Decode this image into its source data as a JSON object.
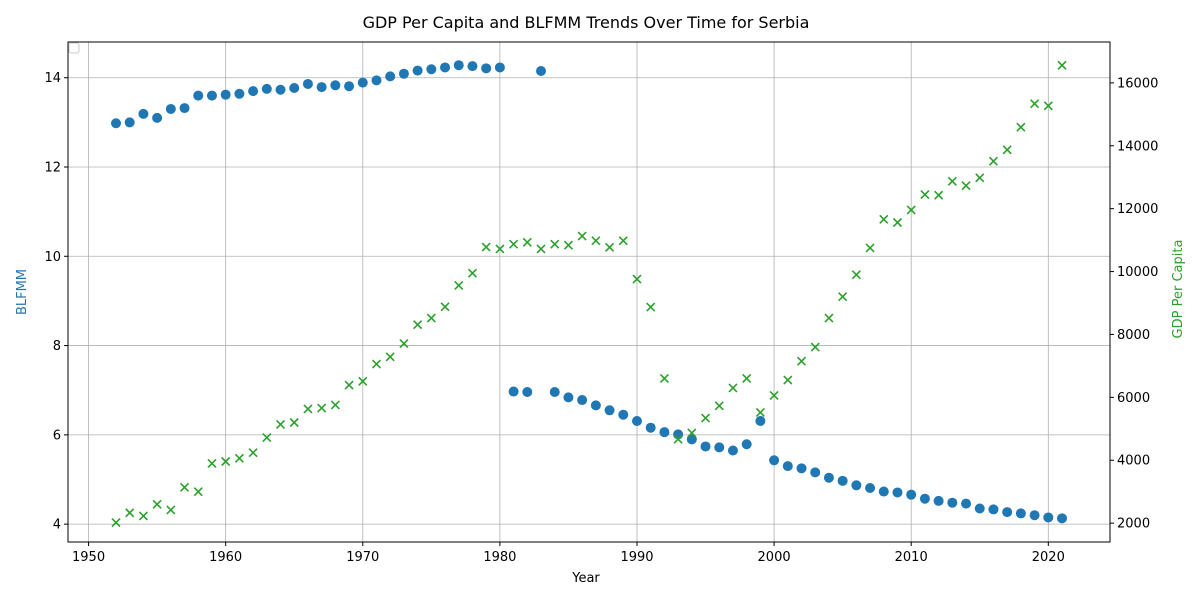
{
  "chart_data": {
    "type": "scatter",
    "title": "GDP Per Capita and BLFMM Trends Over Time for Serbia",
    "xlabel": "Year",
    "ylabel_left": "BLFMM",
    "ylabel_right": "GDP Per Capita",
    "xlim": [
      1948.5,
      2024.5
    ],
    "ylim_left": [
      3.6,
      14.8
    ],
    "ylim_right": [
      1400,
      17300
    ],
    "x_ticks": [
      1950,
      1960,
      1970,
      1980,
      1990,
      2000,
      2010,
      2020
    ],
    "y_ticks_left": [
      4,
      6,
      8,
      10,
      12,
      14
    ],
    "y_ticks_right": [
      2000,
      4000,
      6000,
      8000,
      10000,
      12000,
      14000,
      16000
    ],
    "grid": true,
    "legend": "upper left (empty)",
    "colors": {
      "blfmm": "#1f77b4",
      "gdp": "#2ca02c"
    },
    "series": [
      {
        "name": "BLFMM",
        "axis": "left",
        "marker": "circle",
        "x": [
          1952,
          1953,
          1954,
          1955,
          1956,
          1957,
          1958,
          1959,
          1960,
          1961,
          1962,
          1963,
          1964,
          1965,
          1966,
          1967,
          1968,
          1969,
          1970,
          1971,
          1972,
          1973,
          1974,
          1975,
          1976,
          1977,
          1978,
          1979,
          1980,
          1981,
          1982,
          1983,
          1984,
          1985,
          1986,
          1987,
          1988,
          1989,
          1990,
          1991,
          1992,
          1993,
          1994,
          1995,
          1996,
          1997,
          1998,
          1999,
          2000,
          2001,
          2002,
          2003,
          2004,
          2005,
          2006,
          2007,
          2008,
          2009,
          2010,
          2011,
          2012,
          2013,
          2014,
          2015,
          2016,
          2017,
          2018,
          2019,
          2020,
          2021
        ],
        "values": [
          12.98,
          13.0,
          13.19,
          13.1,
          13.3,
          13.32,
          13.6,
          13.6,
          13.62,
          13.64,
          13.7,
          13.75,
          13.73,
          13.77,
          13.86,
          13.79,
          13.83,
          13.81,
          13.89,
          13.94,
          14.03,
          14.09,
          14.16,
          14.19,
          14.23,
          14.28,
          14.26,
          14.21,
          14.23,
          6.97,
          6.96,
          14.15,
          6.96,
          6.84,
          6.78,
          6.66,
          6.55,
          6.45,
          6.31,
          6.16,
          6.06,
          6.01,
          5.9,
          5.74,
          5.72,
          5.65,
          5.79,
          6.31,
          5.43,
          5.3,
          5.25,
          5.16,
          5.04,
          4.97,
          4.87,
          4.81,
          4.73,
          4.71,
          4.66,
          4.57,
          4.52,
          4.48,
          4.46,
          4.35,
          4.33,
          4.27,
          4.24,
          4.2,
          4.15,
          4.13
        ]
      },
      {
        "name": "GDP Per Capita",
        "axis": "right",
        "marker": "x",
        "x": [
          1952,
          1953,
          1954,
          1955,
          1956,
          1957,
          1958,
          1959,
          1960,
          1961,
          1962,
          1963,
          1964,
          1965,
          1966,
          1967,
          1968,
          1969,
          1970,
          1971,
          1972,
          1973,
          1974,
          1975,
          1976,
          1977,
          1978,
          1979,
          1980,
          1981,
          1982,
          1983,
          1984,
          1985,
          1986,
          1987,
          1988,
          1989,
          1990,
          1991,
          1992,
          1993,
          1994,
          1995,
          1996,
          1997,
          1998,
          1999,
          2000,
          2001,
          2002,
          2003,
          2004,
          2005,
          2006,
          2007,
          2008,
          2009,
          2010,
          2011,
          2012,
          2013,
          2014,
          2015,
          2016,
          2017,
          2018,
          2019,
          2020,
          2021
        ],
        "values": [
          2020,
          2330,
          2230,
          2600,
          2420,
          3140,
          3000,
          3900,
          3960,
          4060,
          4240,
          4720,
          5140,
          5200,
          5630,
          5660,
          5760,
          6390,
          6510,
          7060,
          7290,
          7710,
          8310,
          8520,
          8880,
          9560,
          9950,
          10780,
          10720,
          10870,
          10930,
          10720,
          10870,
          10840,
          11130,
          10980,
          10770,
          10980,
          9760,
          8870,
          6600,
          4670,
          4870,
          5340,
          5730,
          6300,
          6600,
          5520,
          6060,
          6550,
          7150,
          7600,
          8520,
          9200,
          9900,
          10750,
          11660,
          11560,
          11960,
          12450,
          12430,
          12870,
          12730,
          12980,
          13510,
          13870,
          14590,
          15340,
          15270,
          16560
        ]
      }
    ]
  }
}
